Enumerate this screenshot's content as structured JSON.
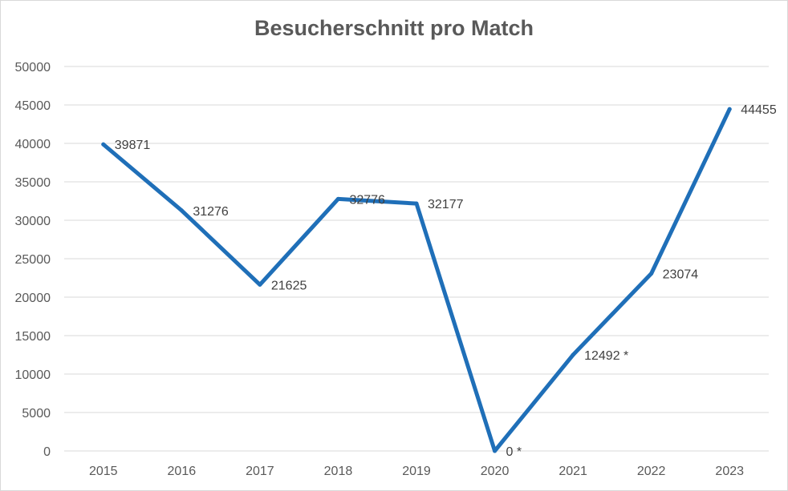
{
  "chart_data": {
    "type": "line",
    "title": "Besucherschnitt pro Match",
    "xlabel": "",
    "ylabel": "",
    "categories": [
      "2015",
      "2016",
      "2017",
      "2018",
      "2019",
      "2020",
      "2021",
      "2022",
      "2023"
    ],
    "series": [
      {
        "values": [
          39871,
          31276,
          21625,
          32776,
          32177,
          0,
          12492,
          23074,
          44455
        ],
        "labels": [
          "39871",
          "31276",
          "21625",
          "32776",
          "32177",
          "0 *",
          "12492 *",
          "23074",
          "44455"
        ],
        "color": "#1f6fb8"
      }
    ],
    "ylim": [
      0,
      50000
    ],
    "yticks": [
      0,
      5000,
      10000,
      15000,
      20000,
      25000,
      30000,
      35000,
      40000,
      45000,
      50000
    ],
    "grid": true,
    "legend": "none"
  }
}
